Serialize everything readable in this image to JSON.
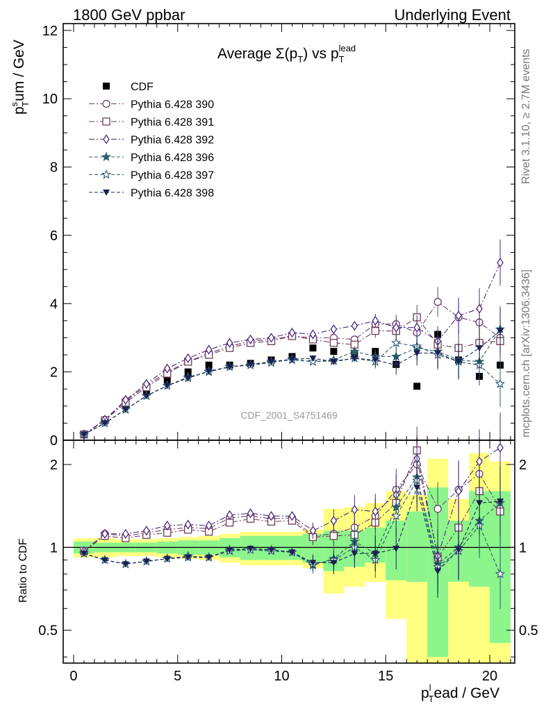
{
  "header": {
    "left": "1800 GeV ppbar",
    "right": "Underlying Event"
  },
  "side_labels": {
    "rivet": "Rivet 3.1.10, ≥ 2.7M events",
    "mcplots": "mcplots.cern.ch [arXiv:1306.3436]"
  },
  "watermark": "CDF_2001_S4751469",
  "colors": {
    "CDF": "#000000",
    "p390": "#6b3d6e",
    "p391": "#6e3c58",
    "p392": "#4a2a80",
    "p396": "#2f5f6f",
    "p397": "#2a5672",
    "p398": "#1a2150",
    "band_outer": "#ffff80",
    "band_inner": "#8cf58c"
  },
  "chart_data": [
    {
      "type": "scatter",
      "title_main": "Average Σ(p",
      "title_sub1": "T",
      "title_mid": ") vs p",
      "title_sub2": "T",
      "title_sup2": "lead",
      "ylabel_main": "p",
      "ylabel_sub": "T",
      "ylabel_sup": "s",
      "ylabel_rest": "um / GeV",
      "xlim": [
        -0.5,
        21.2
      ],
      "ylim": [
        0,
        12.2
      ],
      "yticks": [
        0,
        2,
        4,
        6,
        8,
        10,
        12
      ],
      "x": [
        0.5,
        1.5,
        2.5,
        3.5,
        4.5,
        5.5,
        6.5,
        7.5,
        8.5,
        9.5,
        10.5,
        11.5,
        12.5,
        13.5,
        14.5,
        15.5,
        16.5,
        17.5,
        18.5,
        19.5,
        20.5
      ],
      "series": [
        {
          "key": "CDF",
          "name": "CDF",
          "marker": "square-filled",
          "y": [
            0.17,
            0.58,
            1.02,
            1.45,
            1.78,
            2.0,
            2.2,
            2.2,
            2.25,
            2.35,
            2.45,
            2.7,
            2.6,
            2.52,
            2.6,
            2.22,
            1.58,
            3.1,
            2.35,
            1.87,
            2.2
          ]
        },
        {
          "key": "p390",
          "name": "Pythia 6.428 390",
          "marker": "circle-open",
          "y": [
            0.17,
            0.6,
            1.15,
            1.6,
            2.0,
            2.3,
            2.55,
            2.75,
            2.9,
            2.95,
            3.05,
            3.0,
            3.0,
            2.95,
            3.4,
            3.4,
            3.15,
            4.05,
            3.6,
            3.45,
            3.0
          ]
        },
        {
          "key": "p391",
          "name": "Pythia 6.428 391",
          "marker": "square-open",
          "y": [
            0.17,
            0.58,
            1.1,
            1.55,
            1.95,
            2.3,
            2.5,
            2.7,
            2.85,
            2.9,
            3.05,
            2.95,
            2.85,
            2.8,
            3.2,
            3.2,
            3.6,
            2.8,
            2.7,
            2.85,
            2.9
          ]
        },
        {
          "key": "p392",
          "name": "Pythia 6.428 392",
          "marker": "diamond-open",
          "y": [
            0.17,
            0.6,
            1.18,
            1.65,
            2.1,
            2.4,
            2.65,
            2.85,
            2.95,
            3.0,
            3.15,
            3.1,
            3.25,
            3.35,
            3.5,
            3.3,
            3.3,
            2.9,
            3.65,
            3.85,
            5.2
          ]
        },
        {
          "key": "p396",
          "name": "Pythia 6.428 396",
          "marker": "star-filled",
          "y": [
            0.17,
            0.5,
            0.9,
            1.3,
            1.6,
            1.85,
            2.0,
            2.15,
            2.2,
            2.3,
            2.35,
            2.3,
            2.35,
            2.6,
            2.45,
            2.45,
            2.7,
            2.6,
            2.35,
            2.3,
            3.25
          ]
        },
        {
          "key": "p397",
          "name": "Pythia 6.428 397",
          "marker": "star-open",
          "y": [
            0.17,
            0.5,
            0.9,
            1.3,
            1.6,
            1.82,
            2.02,
            2.15,
            2.2,
            2.27,
            2.37,
            2.3,
            2.32,
            2.4,
            2.3,
            2.85,
            2.75,
            2.5,
            2.3,
            2.2,
            1.65
          ]
        },
        {
          "key": "p398",
          "name": "Pythia 6.428 398",
          "marker": "triangle-down-filled",
          "y": [
            0.17,
            0.5,
            0.9,
            1.3,
            1.6,
            1.82,
            2.02,
            2.15,
            2.22,
            2.3,
            2.37,
            2.4,
            2.3,
            2.4,
            2.35,
            2.2,
            2.55,
            2.55,
            2.3,
            2.7,
            3.2
          ]
        }
      ]
    },
    {
      "type": "scatter",
      "ylabel": "Ratio to CDF",
      "xlabel_main": "p",
      "xlabel_sub": "T",
      "xlabel_sup": "l",
      "xlabel_rest": "ead / GeV",
      "xlim": [
        -0.5,
        21.2
      ],
      "ylim": [
        0.38,
        2.45
      ],
      "xticks": [
        0,
        5,
        10,
        15,
        20
      ],
      "yticks": [
        0.5,
        1,
        2
      ],
      "x": [
        0.5,
        1.5,
        2.5,
        3.5,
        4.5,
        5.5,
        6.5,
        7.5,
        8.5,
        9.5,
        10.5,
        11.5,
        12.5,
        13.5,
        14.5,
        15.5,
        16.5,
        17.5,
        18.5,
        19.5,
        20.5
      ],
      "band_outer": [
        [
          0.92,
          1.08
        ],
        [
          0.92,
          1.08
        ],
        [
          0.93,
          1.07
        ],
        [
          0.93,
          1.07
        ],
        [
          0.92,
          1.08
        ],
        [
          0.91,
          1.09
        ],
        [
          0.9,
          1.1
        ],
        [
          0.88,
          1.12
        ],
        [
          0.86,
          1.14
        ],
        [
          0.86,
          1.14
        ],
        [
          0.86,
          1.14
        ],
        [
          0.84,
          1.16
        ],
        [
          0.68,
          1.38
        ],
        [
          0.72,
          1.4
        ],
        [
          0.75,
          1.45
        ],
        [
          0.55,
          1.6
        ],
        [
          0.36,
          1.55
        ],
        [
          0.36,
          2.1
        ],
        [
          0.36,
          1.5
        ],
        [
          0.36,
          2.2
        ],
        [
          0.36,
          2.05
        ]
      ],
      "band_inner": [
        [
          0.95,
          1.05
        ],
        [
          0.96,
          1.04
        ],
        [
          0.96,
          1.04
        ],
        [
          0.96,
          1.04
        ],
        [
          0.95,
          1.05
        ],
        [
          0.94,
          1.06
        ],
        [
          0.94,
          1.06
        ],
        [
          0.92,
          1.08
        ],
        [
          0.9,
          1.1
        ],
        [
          0.9,
          1.1
        ],
        [
          0.9,
          1.1
        ],
        [
          0.88,
          1.12
        ],
        [
          0.82,
          1.15
        ],
        [
          0.85,
          1.15
        ],
        [
          0.88,
          1.18
        ],
        [
          0.76,
          1.25
        ],
        [
          0.75,
          1.35
        ],
        [
          0.4,
          1.65
        ],
        [
          0.75,
          1.25
        ],
        [
          0.72,
          1.6
        ],
        [
          0.45,
          1.6
        ]
      ],
      "series": [
        {
          "key": "p390",
          "y": [
            0.97,
            1.12,
            1.1,
            1.13,
            1.16,
            1.18,
            1.17,
            1.28,
            1.3,
            1.27,
            1.28,
            1.1,
            1.12,
            1.18,
            1.3,
            1.62,
            2.0,
            1.38,
            1.62,
            1.85,
            1.38
          ]
        },
        {
          "key": "p391",
          "y": [
            0.97,
            1.1,
            1.08,
            1.11,
            1.13,
            1.16,
            1.14,
            1.23,
            1.27,
            1.24,
            1.25,
            1.09,
            1.1,
            1.11,
            1.23,
            1.45,
            2.25,
            0.92,
            1.18,
            1.6,
            1.35
          ]
        },
        {
          "key": "p392",
          "y": [
            0.97,
            1.12,
            1.12,
            1.15,
            1.2,
            1.21,
            1.2,
            1.31,
            1.33,
            1.3,
            1.3,
            1.15,
            1.25,
            1.37,
            1.35,
            1.55,
            2.1,
            0.93,
            1.6,
            2.05,
            2.3
          ]
        },
        {
          "key": "p396",
          "y": [
            0.95,
            0.9,
            0.87,
            0.89,
            0.91,
            0.93,
            0.92,
            0.98,
            0.98,
            0.98,
            0.96,
            0.86,
            0.91,
            1.05,
            0.95,
            1.4,
            1.8,
            0.87,
            1.0,
            1.25,
            1.45
          ]
        },
        {
          "key": "p397",
          "y": [
            0.95,
            0.9,
            0.87,
            0.89,
            0.91,
            0.92,
            0.92,
            0.97,
            0.98,
            0.97,
            0.96,
            0.87,
            0.9,
            1.0,
            0.9,
            1.3,
            1.75,
            0.85,
            0.97,
            1.2,
            0.8
          ]
        },
        {
          "key": "p398",
          "y": [
            0.95,
            0.9,
            0.87,
            0.89,
            0.91,
            0.92,
            0.92,
            0.98,
            0.99,
            0.98,
            0.96,
            0.88,
            0.88,
            0.95,
            0.95,
            0.99,
            1.65,
            0.82,
            0.98,
            1.45,
            1.47
          ]
        }
      ]
    }
  ]
}
